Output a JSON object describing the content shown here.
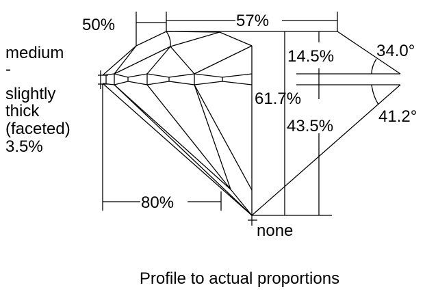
{
  "diagram": {
    "caption": "Profile to actual proportions",
    "girdle_label": [
      "medium",
      "-",
      "slightly",
      "thick",
      "(faceted)",
      "3.5%"
    ],
    "crown_height_angle_width_label": "50%",
    "table_label": "57%",
    "crown_height": "14.5%",
    "crown_angle": "34.0°",
    "total_depth": "61.7%",
    "pavilion_depth": "43.5%",
    "pavilion_angle": "41.2°",
    "lower_half_length": "80%",
    "culet": "none"
  }
}
